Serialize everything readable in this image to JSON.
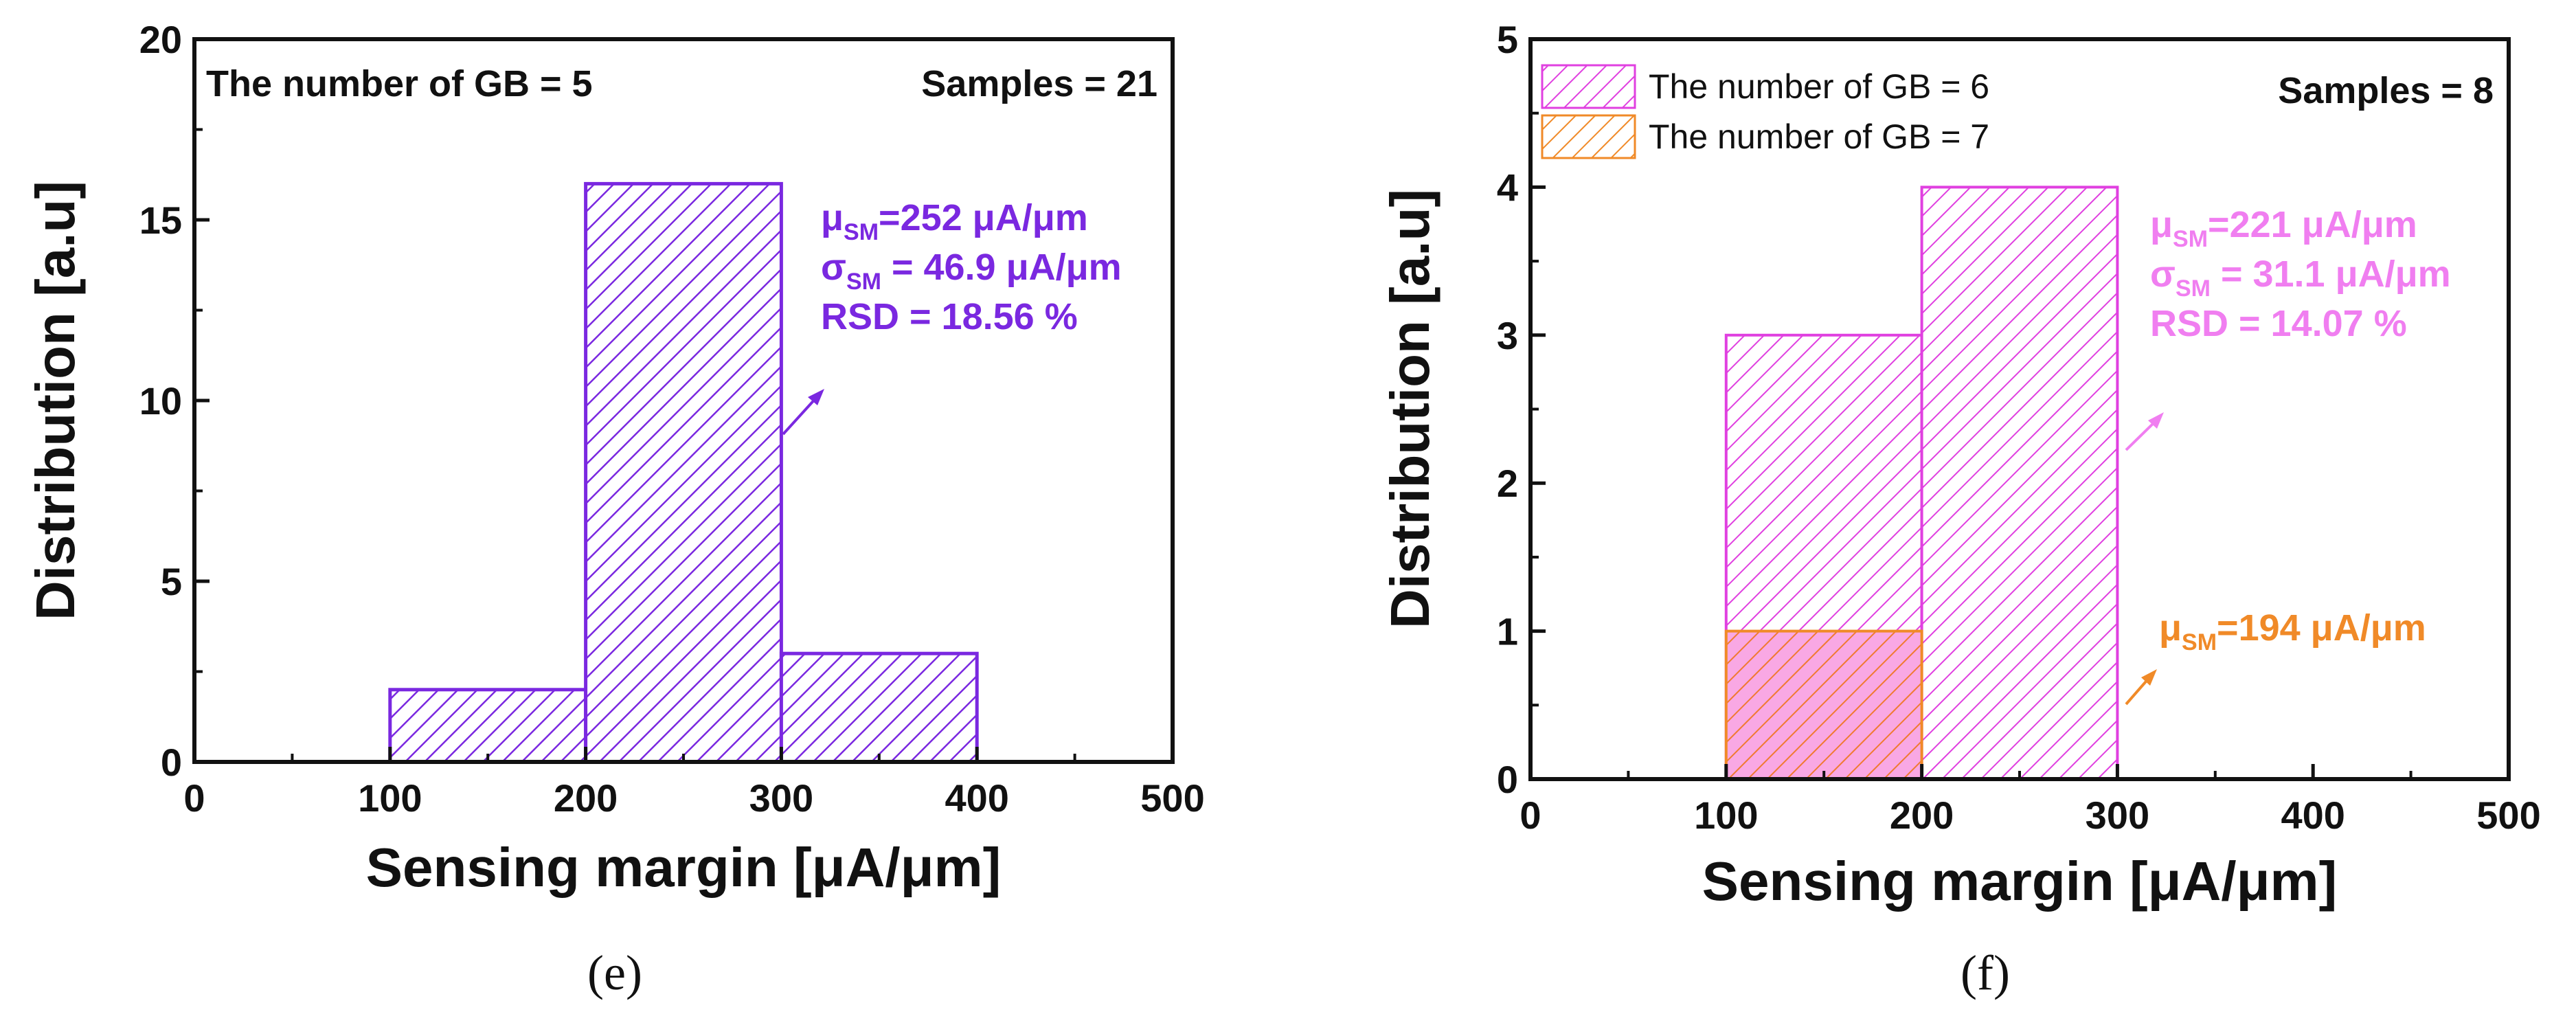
{
  "chart_data": [
    {
      "type": "bar",
      "panel": "(e)",
      "title": "",
      "xlabel": "Sensing margin [μA/μm]",
      "ylabel": "Distribution [a.u]",
      "xlim": [
        0,
        500
      ],
      "ylim": [
        0,
        20
      ],
      "xticks": [
        0,
        100,
        200,
        300,
        400,
        500
      ],
      "yticks": [
        0,
        5,
        10,
        15,
        20
      ],
      "grid": false,
      "bin_edges": [
        100,
        200,
        300,
        400
      ],
      "series": [
        {
          "name": "The number of GB = 5",
          "color": "#7a28e0",
          "values": [
            2,
            16,
            3
          ]
        }
      ],
      "annotations": {
        "top_left": "The number of GB = 5",
        "top_right": "Samples = 21",
        "stats": [
          {
            "sym": "μ",
            "sub": "SM",
            "text": "=252 μA/μm"
          },
          {
            "sym": "σ",
            "sub": "SM",
            "text": " = 46.9 μA/μm"
          },
          {
            "sym": "",
            "sub": "",
            "text": "RSD = 18.56 %"
          }
        ],
        "stats_color": "#7a28e0"
      }
    },
    {
      "type": "bar",
      "panel": "(f)",
      "title": "",
      "xlabel": "Sensing margin [μA/μm]",
      "ylabel": "Distribution [a.u]",
      "xlim": [
        0,
        500
      ],
      "ylim": [
        0,
        5
      ],
      "xticks": [
        0,
        100,
        200,
        300,
        400,
        500
      ],
      "yticks": [
        0,
        1,
        2,
        3,
        4,
        5
      ],
      "grid": false,
      "bin_edges": [
        100,
        200,
        300
      ],
      "series": [
        {
          "name": "The number of GB = 6",
          "color": "#e040e0",
          "values": [
            3,
            4
          ]
        },
        {
          "name": "The number of GB = 7",
          "color": "#f08a28",
          "values": [
            1,
            0
          ]
        }
      ],
      "legend": {
        "position": "top-left",
        "entries": [
          "The number of GB = 6",
          "The number of GB = 7"
        ]
      },
      "annotations": {
        "top_right": "Samples = 8",
        "stats_gb6": [
          {
            "sym": "μ",
            "sub": "SM",
            "text": "=221 μA/μm"
          },
          {
            "sym": "σ",
            "sub": "SM",
            "text": " = 31.1 μA/μm"
          },
          {
            "sym": "",
            "sub": "",
            "text": "RSD = 14.07 %"
          }
        ],
        "stats_gb6_color": "#f07ef0",
        "stats_gb7": [
          {
            "sym": "μ",
            "sub": "SM",
            "text": "=194 μA/μm"
          }
        ],
        "stats_gb7_color": "#f08a28"
      }
    }
  ]
}
